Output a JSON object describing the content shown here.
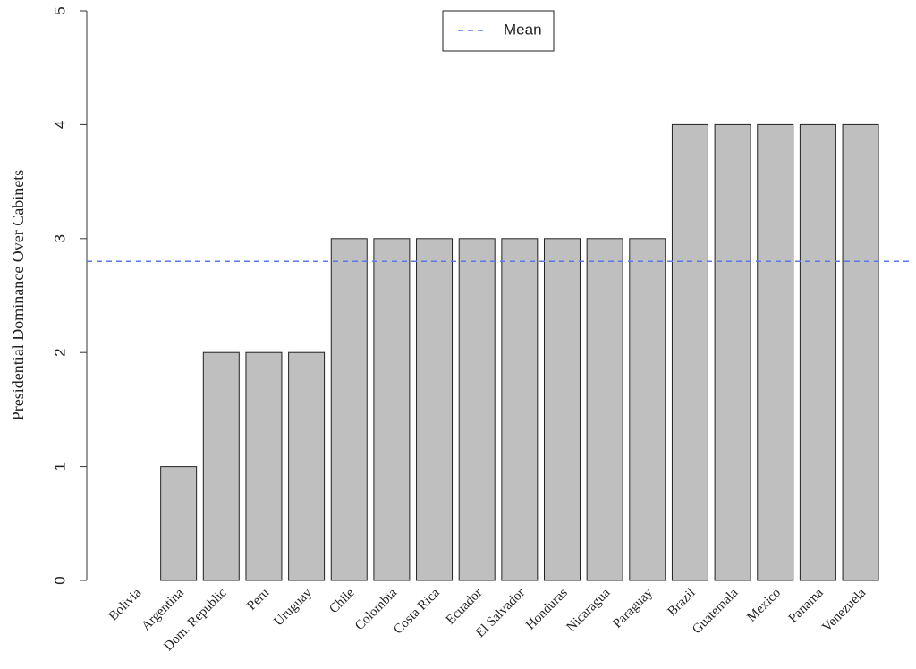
{
  "chart_data": {
    "type": "bar",
    "y_label": "Presidential Dominance Over Cabinets",
    "categories": [
      "Bolivia",
      "Argentina",
      "Dom. Republic",
      "Peru",
      "Uruguay",
      "Chile",
      "Colombia",
      "Costa Rica",
      "Ecuador",
      "El Salvador",
      "Honduras",
      "Nicaragua",
      "Paraguay",
      "Brazil",
      "Guatemala",
      "Mexico",
      "Panama",
      "Venezuela"
    ],
    "values": [
      0,
      1,
      2,
      2,
      2,
      3,
      3,
      3,
      3,
      3,
      3,
      3,
      3,
      4,
      4,
      4,
      4,
      4
    ],
    "color": "#bfbfbf",
    "ylim": [
      0,
      5
    ],
    "yticks": [
      0,
      1,
      2,
      3,
      4,
      5
    ],
    "reference_line": {
      "name": "Mean",
      "value": 2.8,
      "color": "#5a78e6"
    },
    "legend": "top"
  }
}
